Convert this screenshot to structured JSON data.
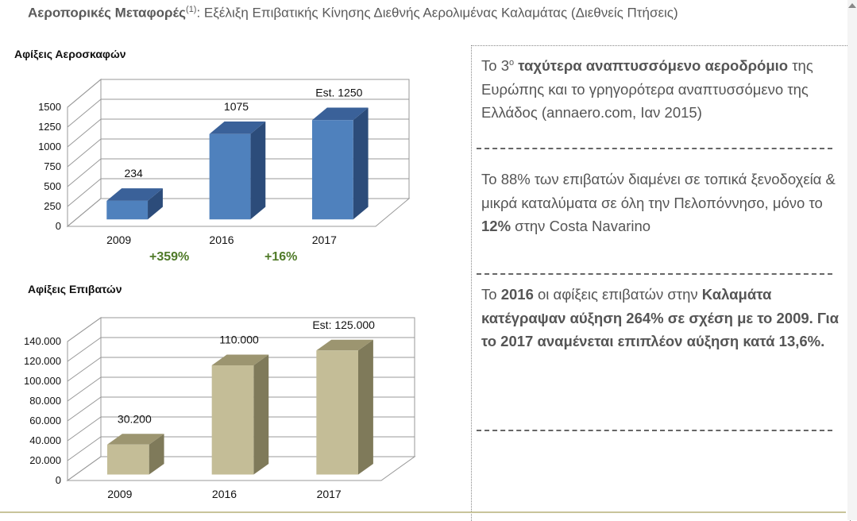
{
  "header": {
    "title_bold": "Αεροπορικές Μεταφορές",
    "title_sup": "(1)",
    "title_rest": ": Εξέλιξη Επιβατικής Κίνησης Διεθνής Αερολιμένας Καλαμάτας (Διεθνείς Πτήσεις)"
  },
  "chart_data": [
    {
      "type": "bar",
      "title": "Αφίξεις Αεροσκαφών",
      "categories": [
        "2009",
        "2016",
        "2017"
      ],
      "values": [
        234,
        1075,
        1250
      ],
      "data_labels": [
        "234",
        "1075",
        "Est. 1250"
      ],
      "y_ticks": [
        "0",
        "250",
        "500",
        "750",
        "1000",
        "1250",
        "1500"
      ],
      "ylim": [
        0,
        1500
      ],
      "annotations": [
        "+359%",
        "+16%"
      ],
      "colors": {
        "front": "#4f81bd",
        "top": "#3a6199",
        "side": "#2c4c7a"
      }
    },
    {
      "type": "bar",
      "title": "Αφίξεις Επιβατών",
      "categories": [
        "2009",
        "2016",
        "2017"
      ],
      "values": [
        30200,
        110000,
        125000
      ],
      "data_labels": [
        "30.200",
        "110.000",
        "Est: 125.000"
      ],
      "y_ticks": [
        "0",
        "20.000",
        "40.000",
        "60.000",
        "80.000",
        "100.000",
        "120.000",
        "140.000"
      ],
      "ylim": [
        0,
        140000
      ],
      "colors": {
        "front": "#c4bd97",
        "top": "#9c9570",
        "side": "#7f7a5a"
      }
    }
  ],
  "panel": {
    "p1_a": "Το 3",
    "p1_sup": "ο",
    "p1_bold": " ταχύτερα αναπτυσσόμενο αεροδρόμιο",
    "p1_c": " της Ευρώπης  και το γρηγορότερα αναπτυσσόμενο της Ελλάδος (annaero.com, Ιαν 2015)",
    "p2_a": "Το 88% των επιβατών διαμένει σε τοπικά ξενοδοχεία & μικρά καταλύματα σε όλη την Πελοπόννησο, μόνο το ",
    "p2_bold": "12%",
    "p2_c": " στην Costa Navarino",
    "p3_a": "Το ",
    "p3_bold1": "2016",
    "p3_b": " οι αφίξεις επιβατών στην  ",
    "p3_bold2": "Καλαμάτα κατέγραψαν αύξηση 264% σε σχέση με το 2009. Για το 2017 αναμένεται επιπλέον αύξηση κατά 13,6%."
  }
}
